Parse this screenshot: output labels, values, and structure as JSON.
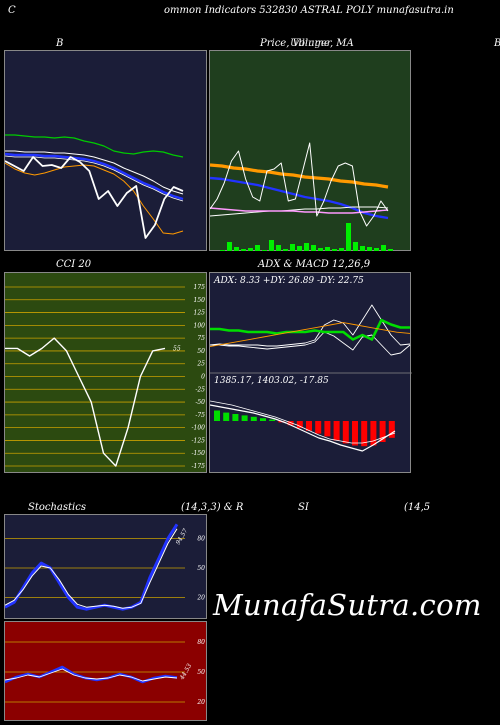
{
  "header": {
    "left_letter": "C",
    "title": "ommon  Indicators 532830  ASTRAL POLY munafasutra.in"
  },
  "panels": {
    "bollinger": {
      "label": "B"
    },
    "price": {
      "label": "Price,  Volume,  MA",
      "label_overlay": "Ullinger",
      "right_letter": "B"
    },
    "cci": {
      "label": "CCI 20",
      "ticks": [
        "175",
        "150",
        "125",
        "100",
        "75",
        "50",
        "25",
        "0",
        "-25",
        "-50",
        "-75",
        "-100",
        "-125",
        "-150",
        "-175"
      ],
      "current_value": "55"
    },
    "adx": {
      "label": "ADX  & MACD 12,26,9",
      "readout": "ADX: 8.33 +DY: 26.89 -DY: 22.75"
    },
    "macd": {
      "readout": "1385.17,   1403.02,   -17.85"
    },
    "stoch": {
      "label_left": "Stochastics",
      "label_mid": "(14,3,3) & R",
      "ticks": [
        "80",
        "50",
        "20"
      ],
      "current_value": "94.57"
    },
    "rsi": {
      "label_left": "SI",
      "label_right": "(14,5",
      "ticks": [
        "80",
        "50",
        "20"
      ],
      "current_value": "44.53"
    }
  },
  "watermark": "MunafaSutra.com",
  "colors": {
    "navy_bg": "#1b1d38",
    "green_bg": "#1f3e1e",
    "olive_bg": "#2c4a10",
    "red_bg": "#8b0000",
    "orange": "#ff9900",
    "blue": "#2233ff",
    "lime": "#00cc00"
  },
  "chart_data": [
    {
      "type": "line",
      "name": "Bollinger Bands",
      "series": [
        {
          "values": [
            84,
            84,
            85,
            86,
            86,
            87,
            86,
            87,
            90,
            92,
            95,
            100,
            102,
            103,
            101,
            100,
            101,
            104,
            106
          ]
        },
        {
          "values": [
            100,
            100,
            101,
            101,
            101,
            102,
            102,
            103,
            104,
            106,
            109,
            112,
            117,
            121,
            125,
            130,
            136,
            140,
            143
          ]
        },
        {
          "values": [
            103,
            104,
            104,
            104,
            105,
            105,
            106,
            107,
            108,
            110,
            113,
            117,
            122,
            127,
            132,
            136,
            141,
            145,
            148
          ]
        },
        {
          "values": [
            112,
            118,
            122,
            124,
            122,
            119,
            116,
            115,
            114,
            115,
            119,
            123,
            130,
            140,
            155,
            168,
            182,
            183,
            180
          ]
        },
        {
          "values": [
            110,
            115,
            120,
            106,
            115,
            114,
            117,
            106,
            111,
            120,
            148,
            140,
            155,
            142,
            135,
            187,
            174,
            148,
            136,
            140
          ]
        }
      ]
    },
    {
      "type": "line",
      "name": "Price, Volume, MA",
      "series": [
        {
          "values": [
            114,
            115,
            117,
            118,
            120,
            121,
            123,
            124,
            126,
            127,
            128,
            130,
            131,
            133,
            134,
            136
          ]
        },
        {
          "values": [
            127,
            128,
            130,
            132,
            134,
            137,
            140,
            143,
            146,
            148,
            150,
            153,
            157,
            162,
            165,
            167
          ]
        },
        {
          "values": [
            165,
            164,
            163,
            162,
            161,
            160,
            160,
            159,
            158,
            158,
            157,
            157,
            156,
            156,
            156,
            157
          ]
        },
        {
          "values": [
            157,
            158,
            159,
            160,
            160,
            160,
            160,
            160,
            161,
            161,
            162,
            162,
            162,
            161,
            160,
            159
          ]
        }
      ],
      "volume": [
        1,
        9,
        4,
        2,
        3,
        6,
        1,
        11,
        6,
        2,
        7,
        5,
        8,
        6,
        3,
        4,
        2,
        3,
        28,
        9,
        5,
        4,
        3,
        6,
        2
      ]
    },
    {
      "type": "line",
      "name": "CCI 20",
      "ylim": [
        -175,
        175
      ],
      "values": [
        55,
        55,
        40,
        55,
        75,
        50,
        0,
        -50,
        -150,
        -175,
        -100,
        0,
        50,
        55
      ]
    },
    {
      "type": "line",
      "name": "ADX",
      "series": [
        {
          "values": [
            24,
            24,
            23,
            23,
            22,
            22,
            22,
            21,
            22,
            22,
            22,
            23,
            22,
            22,
            22,
            17,
            20,
            17,
            30,
            27,
            25,
            25
          ]
        },
        {
          "values": [
            20,
            21,
            20,
            20,
            20,
            20,
            19,
            19,
            20,
            21,
            22,
            25,
            40,
            45,
            42,
            30,
            45,
            60,
            45,
            30,
            20,
            21
          ]
        },
        {
          "values": [
            20,
            20,
            19,
            19,
            18,
            17,
            16,
            17,
            18,
            19,
            20,
            23,
            33,
            29,
            22,
            15,
            28,
            30,
            20,
            10,
            12,
            20
          ]
        }
      ]
    },
    {
      "type": "bar",
      "name": "MACD 12,26,9",
      "values": [
        1.5,
        1.2,
        1.0,
        0.8,
        0.6,
        0.4,
        0.2,
        -0.2,
        -0.6,
        -1.0,
        -1.4,
        -1.8,
        -2.2,
        -2.8,
        -3.2,
        -3.5,
        -3.6,
        -3.5,
        -3.0,
        -2.4
      ]
    },
    {
      "type": "line",
      "name": "Stochastics (14,3,3)",
      "ylim": [
        0,
        100
      ],
      "series": [
        {
          "values": [
            10,
            15,
            30,
            45,
            55,
            50,
            35,
            20,
            10,
            8,
            10,
            12,
            10,
            8,
            10,
            15,
            40,
            60,
            80,
            94.57
          ]
        },
        {
          "values": [
            12,
            17,
            28,
            42,
            52,
            50,
            38,
            23,
            13,
            10,
            11,
            12,
            11,
            9,
            10,
            14,
            35,
            55,
            75,
            90
          ]
        }
      ]
    },
    {
      "type": "line",
      "name": "RSI (14,5",
      "ylim": [
        0,
        100
      ],
      "series": [
        {
          "values": [
            40,
            45,
            48,
            45,
            50,
            55,
            48,
            44,
            42,
            44,
            48,
            45,
            40,
            44,
            46,
            44.53
          ]
        },
        {
          "values": [
            42,
            44,
            47,
            45,
            49,
            53,
            47,
            44,
            43,
            44,
            47,
            45,
            41,
            43,
            45,
            44
          ]
        }
      ]
    }
  ]
}
